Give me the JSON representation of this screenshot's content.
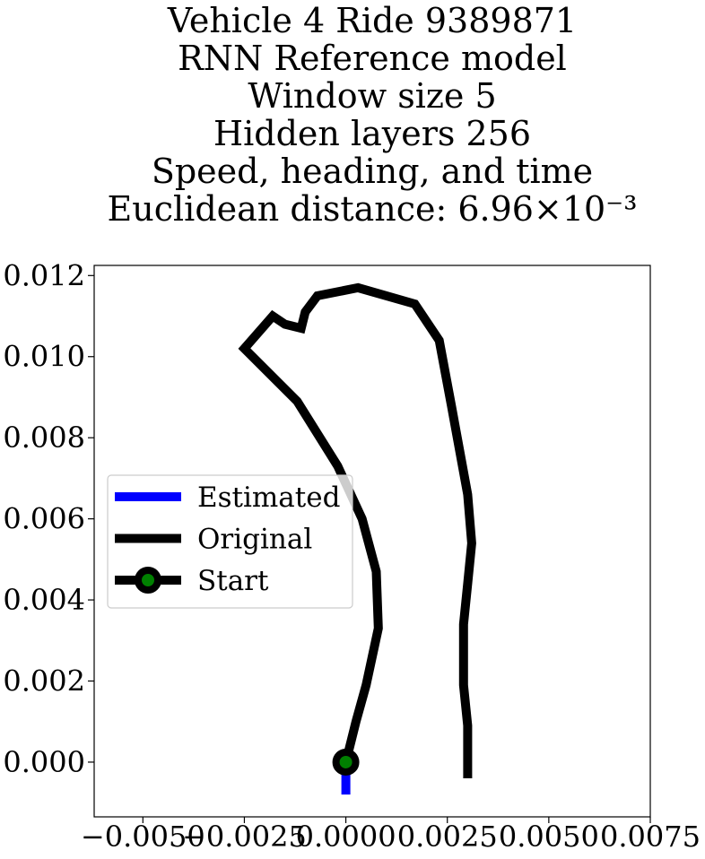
{
  "chart_data": {
    "type": "line",
    "title_lines": [
      "Vehicle 4 Ride 9389871",
      "RNN Reference model",
      "Window size 5",
      "Hidden layers 256",
      "Speed, heading, and time",
      "Euclidean distance: 6.96×10⁻³"
    ],
    "xlabel": "",
    "ylabel": "",
    "xlim": [
      -0.0062,
      0.0075
    ],
    "ylim": [
      -0.00135,
      0.01225
    ],
    "x_ticks": [
      -0.005,
      -0.0025,
      0.0,
      0.0025,
      0.005,
      0.0075
    ],
    "x_tick_labels": [
      "−0.0050",
      "−0.0025",
      "0.0000",
      "0.0025",
      "0.0050",
      "0.0075"
    ],
    "y_ticks": [
      0.0,
      0.002,
      0.004,
      0.006,
      0.008,
      0.01,
      0.012
    ],
    "y_tick_labels": [
      "0.000",
      "0.002",
      "0.004",
      "0.006",
      "0.008",
      "0.010",
      "0.012"
    ],
    "grid": false,
    "legend_position": "center-left",
    "series": [
      {
        "name": "Estimated",
        "color": "#0000ff",
        "x": [
          0.0,
          0.0
        ],
        "y": [
          0.0,
          -0.0008
        ]
      },
      {
        "name": "Original",
        "color": "#000000",
        "x": [
          0.0,
          0.00025,
          0.0005,
          0.0008,
          0.00075,
          0.0004,
          -0.0002,
          -0.0012,
          -0.0025,
          -0.0018,
          -0.0015,
          -0.0011,
          -0.001,
          -0.0007,
          0.0003,
          0.0017,
          0.0023,
          0.0026,
          0.003,
          0.0031,
          0.003,
          0.0029,
          0.0029,
          0.003,
          0.003,
          0.003
        ],
        "y": [
          0.0,
          0.001,
          0.0019,
          0.0033,
          0.0047,
          0.006,
          0.0073,
          0.0089,
          0.0102,
          0.011,
          0.0108,
          0.0107,
          0.0111,
          0.0115,
          0.0117,
          0.0113,
          0.0104,
          0.0088,
          0.0066,
          0.0054,
          0.0044,
          0.0034,
          0.0019,
          0.0009,
          0.0003,
          -0.0004
        ]
      }
    ],
    "start_point": {
      "name": "Start",
      "x": 0.0,
      "y": 0.0,
      "marker_color": "#008000",
      "edge_color": "#000000"
    },
    "legend": [
      {
        "label": "Estimated",
        "color": "#0000ff",
        "marker": false
      },
      {
        "label": "Original",
        "color": "#000000",
        "marker": false
      },
      {
        "label": "Start",
        "color": "#000000",
        "marker": true,
        "marker_color": "#008000"
      }
    ]
  }
}
